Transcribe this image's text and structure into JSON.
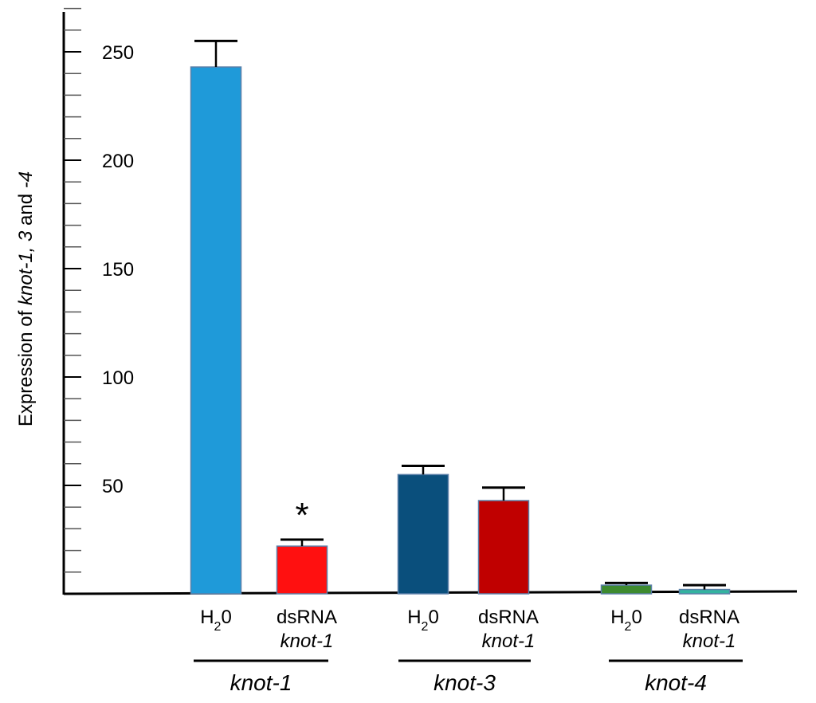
{
  "chart_data": {
    "type": "bar",
    "ylabel": {
      "prefix": "Expression of ",
      "gene1": "knot-1, 3",
      "mid": " and ",
      "gene2": "-4"
    },
    "ylim": [
      0,
      270
    ],
    "y_major_ticks": [
      50,
      100,
      150,
      200,
      250
    ],
    "y_minor_step": 10,
    "grid": false,
    "legend": "none",
    "groups": [
      {
        "name": "knot-1",
        "bars": [
          {
            "label": {
              "main": "H",
              "sub": "2",
              "tail": "0"
            },
            "value": 243,
            "error": 12,
            "color": "#1f9ad9"
          },
          {
            "label": {
              "main": "dsRNA",
              "gene": "knot-1"
            },
            "value": 22,
            "error": 3,
            "color": "#ff1010",
            "annotation": "*"
          }
        ]
      },
      {
        "name": "knot-3",
        "bars": [
          {
            "label": {
              "main": "H",
              "sub": "2",
              "tail": "0"
            },
            "value": 55,
            "error": 4,
            "color": "#0a4f7c"
          },
          {
            "label": {
              "main": "dsRNA",
              "gene": "knot-1"
            },
            "value": 43,
            "error": 6,
            "color": "#c00000"
          }
        ]
      },
      {
        "name": "knot-4",
        "bars": [
          {
            "label": {
              "main": "H",
              "sub": "2",
              "tail": "0"
            },
            "value": 4,
            "error": 1,
            "color": "#3d8a2f"
          },
          {
            "label": {
              "main": "dsRNA",
              "gene": "knot-1"
            },
            "value": 2,
            "error": 2,
            "color": "#33b3a0"
          }
        ]
      }
    ]
  }
}
